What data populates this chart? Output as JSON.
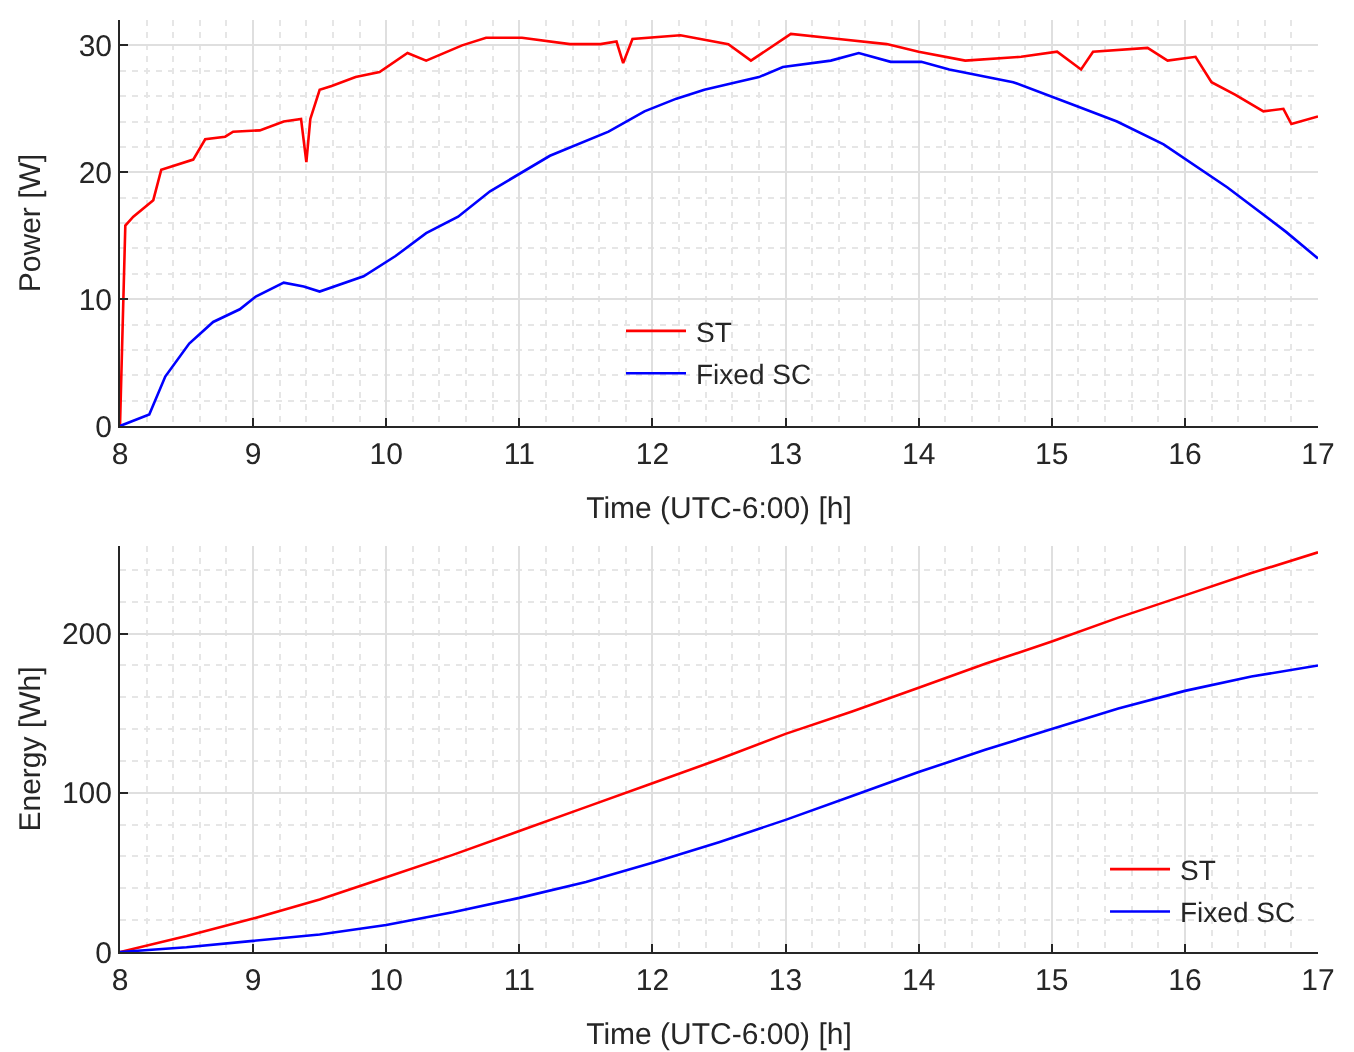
{
  "chart_data": [
    {
      "type": "line",
      "xlabel": "Time (UTC-6:00) [h]",
      "ylabel": "Power [W]",
      "xlim": [
        8,
        17
      ],
      "xticks": [
        8,
        9,
        10,
        11,
        12,
        13,
        14,
        15,
        16,
        17
      ],
      "ylim": [
        0,
        32
      ],
      "yticks": [
        0,
        10,
        20,
        30
      ],
      "grid": true,
      "legend": "bottom",
      "line_style": "solid",
      "marker": "none",
      "series": [
        {
          "name": "ST",
          "color": "#ff0000",
          "x": [
            8,
            8.04,
            8.1,
            8.25,
            8.31,
            8.55,
            8.64,
            8.79,
            8.85,
            9.05,
            9.23,
            9.36,
            9.4,
            9.43,
            9.5,
            9.59,
            9.77,
            9.95,
            10.16,
            10.3,
            10.57,
            10.75,
            11.02,
            11.38,
            11.61,
            11.73,
            11.78,
            11.85,
            12.21,
            12.57,
            12.74,
            13.04,
            13.4,
            13.76,
            14,
            14.35,
            14.77,
            15.04,
            15.22,
            15.31,
            15.72,
            15.87,
            16.08,
            16.2,
            16.38,
            16.59,
            16.74,
            16.8,
            17
          ],
          "values": [
            0,
            15.8,
            16.5,
            17.8,
            20.2,
            21,
            22.6,
            22.8,
            23.2,
            23.3,
            24,
            24.2,
            20.8,
            24.2,
            26.5,
            26.8,
            27.5,
            27.9,
            29.4,
            28.8,
            30,
            30.6,
            30.6,
            30.1,
            30.1,
            30.3,
            28.6,
            30.5,
            30.8,
            30.1,
            28.8,
            30.9,
            30.5,
            30.1,
            29.5,
            28.8,
            29.1,
            29.5,
            28.1,
            29.5,
            29.8,
            28.8,
            29.1,
            27.1,
            26.1,
            24.8,
            25,
            23.8,
            24.4
          ]
        },
        {
          "name": "Fixed SC",
          "color": "#0000ff",
          "x": [
            8,
            8.22,
            8.34,
            8.52,
            8.7,
            8.9,
            9.02,
            9.23,
            9.38,
            9.5,
            9.83,
            10.07,
            10.3,
            10.54,
            10.78,
            11.23,
            11.67,
            11.94,
            12.18,
            12.39,
            12.63,
            12.8,
            12.98,
            13.34,
            13.55,
            13.79,
            14.02,
            14.23,
            14.71,
            15.19,
            15.49,
            15.84,
            16.32,
            16.76,
            17
          ],
          "values": [
            0,
            0.9,
            3.9,
            6.5,
            8.2,
            9.2,
            10.2,
            11.3,
            11,
            10.6,
            11.8,
            13.4,
            15.2,
            16.5,
            18.5,
            21.3,
            23.2,
            24.8,
            25.8,
            26.5,
            27.1,
            27.5,
            28.3,
            28.8,
            29.4,
            28.7,
            28.7,
            28.1,
            27.1,
            25.2,
            24,
            22.2,
            18.8,
            15.3,
            13.2
          ]
        }
      ]
    },
    {
      "type": "line",
      "xlabel": "Time (UTC-6:00) [h]",
      "ylabel": "Energy [Wh]",
      "xlim": [
        8,
        17
      ],
      "xticks": [
        8,
        9,
        10,
        11,
        12,
        13,
        14,
        15,
        16,
        17
      ],
      "ylim": [
        0,
        255
      ],
      "yticks": [
        0,
        100,
        200
      ],
      "grid": true,
      "legend": "bottom right",
      "line_style": "solid",
      "marker": "none",
      "series": [
        {
          "name": "ST",
          "color": "#ff0000",
          "x": [
            8,
            8.5,
            9,
            9.5,
            10,
            10.5,
            11,
            11.5,
            12,
            12.5,
            13,
            13.5,
            14,
            14.5,
            15,
            15.5,
            16,
            16.5,
            17
          ],
          "values": [
            0,
            10,
            21,
            33,
            47,
            61,
            76,
            91,
            106,
            121,
            137,
            151,
            166,
            181,
            195,
            210,
            224,
            238,
            251
          ]
        },
        {
          "name": "Fixed SC",
          "color": "#0000ff",
          "x": [
            8,
            8.5,
            9,
            9.5,
            10,
            10.5,
            11,
            11.5,
            12,
            12.5,
            13,
            13.5,
            14,
            14.5,
            15,
            15.5,
            16,
            16.5,
            17
          ],
          "values": [
            0,
            3,
            7,
            11,
            17,
            25,
            34,
            44,
            56,
            69,
            83,
            98,
            113,
            127,
            140,
            153,
            164,
            173,
            180
          ]
        }
      ]
    }
  ]
}
